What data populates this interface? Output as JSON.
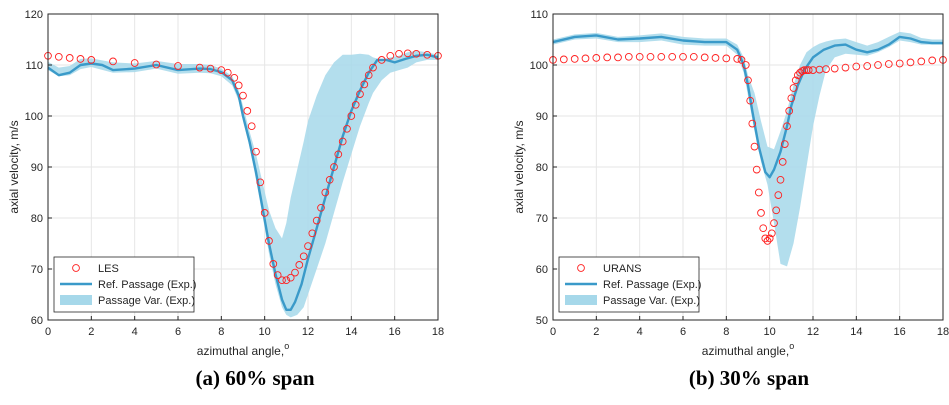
{
  "chart_data": [
    {
      "type": "scatter",
      "caption": "(a) 60% span",
      "xlabel": "azimuthal angle,",
      "xlabel_sup": "o",
      "ylabel": "axial velocity, m/s",
      "xlim": [
        0,
        18
      ],
      "ylim": [
        60,
        120
      ],
      "xticks": [
        0,
        2,
        4,
        6,
        8,
        10,
        12,
        14,
        16,
        18
      ],
      "yticks": [
        60,
        70,
        80,
        90,
        100,
        110,
        120
      ],
      "grid": true,
      "legend_position": "bottom-left",
      "colors": {
        "scatter": "#ff2020",
        "line": "#3a9ac9",
        "band": "#a6d8ea"
      },
      "legend": [
        "LES",
        "Ref. Passage (Exp.)",
        "Passage Var. (Exp.)"
      ],
      "series": [
        {
          "name": "LES",
          "kind": "scatter",
          "x": [
            0,
            0.5,
            1,
            1.5,
            2,
            3,
            4,
            5,
            6,
            7,
            7.5,
            8,
            8.3,
            8.6,
            8.8,
            9,
            9.2,
            9.4,
            9.6,
            9.8,
            10,
            10.2,
            10.4,
            10.6,
            10.8,
            11,
            11.2,
            11.4,
            11.6,
            11.8,
            12,
            12.2,
            12.4,
            12.6,
            12.8,
            13,
            13.2,
            13.4,
            13.6,
            13.8,
            14,
            14.2,
            14.4,
            14.6,
            14.8,
            15,
            15.4,
            15.8,
            16.2,
            16.6,
            17,
            17.5,
            18
          ],
          "y": [
            111.8,
            111.6,
            111.4,
            111.2,
            111,
            110.7,
            110.4,
            110.1,
            109.8,
            109.5,
            109.3,
            109,
            108.5,
            107.5,
            106,
            104,
            101,
            98,
            93,
            87,
            81,
            75.5,
            71,
            68.8,
            67.8,
            67.8,
            68.3,
            69.3,
            70.8,
            72.5,
            74.5,
            77,
            79.5,
            82,
            85,
            87.5,
            90,
            92.5,
            95,
            97.5,
            100,
            102.2,
            104.3,
            106.2,
            108,
            109.5,
            111,
            111.8,
            112.2,
            112.3,
            112.2,
            112,
            111.8
          ]
        },
        {
          "name": "Ref. Passage (Exp.)",
          "kind": "line",
          "x": [
            0,
            0.5,
            1,
            1.5,
            2,
            2.5,
            3,
            4,
            5,
            6,
            7,
            7.5,
            8,
            8.5,
            8.8,
            9,
            9.3,
            9.6,
            9.9,
            10.2,
            10.5,
            10.8,
            11,
            11.2,
            11.4,
            11.7,
            12,
            12.4,
            12.8,
            13.2,
            13.6,
            14,
            14.4,
            14.8,
            15.2,
            15.6,
            16,
            16.5,
            17,
            17.5,
            18
          ],
          "y": [
            109.5,
            108,
            108.5,
            110,
            110.3,
            110,
            109,
            109.3,
            110,
            109,
            109.3,
            109.2,
            108.6,
            107,
            104,
            100,
            95,
            89,
            82,
            75,
            69,
            64,
            62,
            62,
            63.5,
            67,
            72,
            78,
            84,
            90,
            96,
            101,
            105,
            108.5,
            111,
            111,
            110.5,
            111.2,
            111.8,
            112,
            111.5
          ]
        },
        {
          "name": "Passage Var. (Exp.)",
          "kind": "band",
          "x": [
            0,
            0.5,
            1,
            1.5,
            2,
            3,
            4,
            5,
            6,
            7,
            7.5,
            8,
            8.5,
            8.8,
            9,
            9.3,
            9.6,
            9.9,
            10.2,
            10.5,
            10.8,
            11,
            11.2,
            11.5,
            11.8,
            12,
            12.4,
            12.8,
            13.2,
            13.6,
            14,
            14.4,
            14.8,
            15,
            15.4,
            15.8,
            16.2,
            16.6,
            17,
            17.5,
            18
          ],
          "low": [
            109,
            107.8,
            108,
            109.2,
            109.6,
            108.5,
            108.6,
            109.3,
            108.3,
            108.5,
            108.4,
            107.8,
            106,
            103,
            99,
            94,
            87.5,
            80.5,
            73,
            67,
            62.5,
            61,
            60.5,
            61,
            62.5,
            65,
            70,
            75,
            81,
            87,
            92.5,
            98,
            102.5,
            104.5,
            107,
            108.5,
            109,
            109.5,
            110.5,
            111,
            111
          ],
          "high": [
            110.6,
            109.5,
            109.8,
            111.2,
            111.3,
            110.5,
            110.3,
            110.8,
            110.2,
            110.2,
            110,
            109.3,
            107.8,
            105,
            102,
            97,
            92.5,
            87,
            81.5,
            78,
            76,
            79,
            84,
            89.5,
            95,
            99,
            104,
            108,
            110.5,
            112,
            112,
            112.2,
            112,
            111.5,
            111,
            111.5,
            111.8,
            112.5,
            112.8,
            112.5,
            112
          ]
        }
      ]
    },
    {
      "type": "scatter",
      "caption": "(b) 30% span",
      "xlabel": "azimuthal angle,",
      "xlabel_sup": "o",
      "ylabel": "axial velocity, m/s",
      "xlim": [
        0,
        18
      ],
      "ylim": [
        50,
        110
      ],
      "xticks": [
        0,
        2,
        4,
        6,
        8,
        10,
        12,
        14,
        16,
        18
      ],
      "yticks": [
        50,
        60,
        70,
        80,
        90,
        100,
        110
      ],
      "grid": true,
      "legend_position": "bottom-left",
      "colors": {
        "scatter": "#ff2020",
        "line": "#3a9ac9",
        "band": "#a6d8ea"
      },
      "legend": [
        "URANS",
        "Ref. Passage (Exp.)",
        "Passage Var. (Exp.)"
      ],
      "series": [
        {
          "name": "URANS",
          "kind": "scatter",
          "x": [
            0,
            0.5,
            1,
            1.5,
            2,
            2.5,
            3,
            3.5,
            4,
            4.5,
            5,
            5.5,
            6,
            6.5,
            7,
            7.5,
            8,
            8.5,
            8.7,
            8.9,
            9,
            9.1,
            9.2,
            9.3,
            9.4,
            9.5,
            9.6,
            9.7,
            9.8,
            9.9,
            10,
            10.1,
            10.2,
            10.3,
            10.4,
            10.5,
            10.6,
            10.7,
            10.8,
            10.9,
            11,
            11.1,
            11.2,
            11.3,
            11.4,
            11.5,
            11.6,
            11.7,
            11.8,
            12,
            12.3,
            12.6,
            13,
            13.5,
            14,
            14.5,
            15,
            15.5,
            16,
            16.5,
            17,
            17.5,
            18
          ],
          "y": [
            101,
            101.1,
            101.2,
            101.3,
            101.4,
            101.5,
            101.5,
            101.6,
            101.6,
            101.6,
            101.6,
            101.6,
            101.6,
            101.6,
            101.5,
            101.4,
            101.3,
            101.2,
            101,
            100,
            97,
            93,
            88.5,
            84,
            79.5,
            75,
            71,
            68,
            66,
            65.5,
            66,
            67,
            69,
            71.5,
            74.5,
            77.5,
            81,
            84.5,
            88,
            91,
            93.5,
            95.5,
            97,
            98,
            98.5,
            98.8,
            99,
            99,
            99,
            99,
            99.1,
            99.2,
            99.3,
            99.5,
            99.7,
            99.8,
            100,
            100.2,
            100.3,
            100.5,
            100.7,
            100.9,
            101
          ]
        },
        {
          "name": "Ref. Passage (Exp.)",
          "kind": "line",
          "x": [
            0,
            1,
            2,
            3,
            4,
            5,
            6,
            7,
            8,
            8.5,
            8.8,
            9,
            9.2,
            9.5,
            9.8,
            10,
            10.2,
            10.5,
            10.8,
            11,
            11.3,
            11.6,
            12,
            12.5,
            13,
            13.5,
            14,
            14.5,
            15,
            15.5,
            16,
            16.5,
            17,
            17.5,
            18
          ],
          "y": [
            104.5,
            105.5,
            105.8,
            105,
            105.2,
            105.5,
            104.8,
            104.5,
            104.5,
            103,
            100,
            96,
            91,
            84,
            79,
            78,
            79.5,
            83,
            88,
            92,
            96,
            99,
            101.5,
            103,
            103.8,
            104,
            103,
            102.5,
            103,
            104,
            105.5,
            105.2,
            104.5,
            104.3,
            104.3
          ]
        },
        {
          "name": "Passage Var. (Exp.)",
          "kind": "band",
          "x": [
            0,
            1,
            2,
            3,
            4,
            5,
            6,
            7,
            8,
            8.5,
            8.8,
            9,
            9.3,
            9.6,
            9.9,
            10.2,
            10.5,
            10.8,
            11.1,
            11.4,
            11.7,
            12,
            12.3,
            12.6,
            13,
            13.5,
            14,
            14.5,
            15,
            15.5,
            16,
            16.5,
            17,
            17.5,
            18
          ],
          "low": [
            104,
            105,
            105.2,
            104.5,
            104.5,
            104.8,
            104,
            103.8,
            103.8,
            102,
            98.5,
            94,
            87,
            81,
            76.5,
            69,
            61,
            60.5,
            65,
            72,
            80,
            88,
            94,
            99,
            101.5,
            102.2,
            102,
            101.8,
            102.5,
            103.5,
            104.8,
            104.5,
            104,
            104,
            104
          ],
          "high": [
            105,
            106,
            106.3,
            105.5,
            105.8,
            106.2,
            105.5,
            105.2,
            105.2,
            104,
            101.5,
            98,
            94.5,
            89,
            84,
            83.5,
            87,
            91,
            96,
            100,
            102.5,
            103.5,
            104.2,
            104.6,
            105,
            105.2,
            104.5,
            103.8,
            104.5,
            105.5,
            106.5,
            106.2,
            105.3,
            105,
            105
          ]
        }
      ]
    }
  ]
}
